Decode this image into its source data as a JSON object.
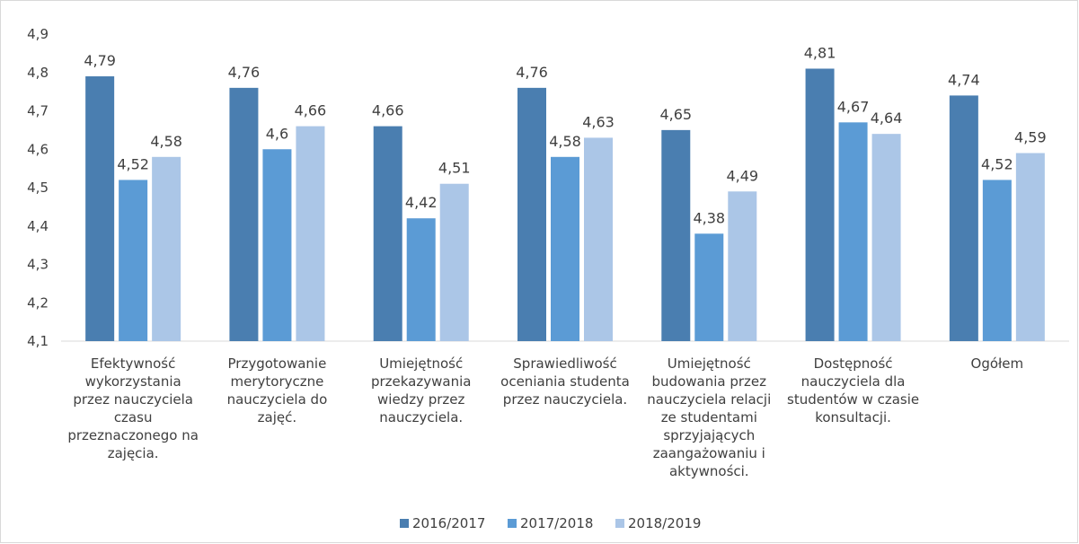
{
  "chart_data": {
    "type": "bar",
    "categories": [
      "Efektywność wykorzystania przez nauczyciela czasu przeznaczonego na zajęcia.",
      "Przygotowanie merytoryczne nauczyciela do zajęć.",
      "Umiejętność przekazywania wiedzy przez nauczyciela.",
      "Sprawiedliwość oceniania studenta przez nauczyciela.",
      "Umiejętność budowania przez nauczyciela relacji ze studentami sprzyjających zaangażowaniu i aktywności.",
      "Dostępność nauczyciela dla studentów w czasie konsultacji.",
      "Ogółem"
    ],
    "series": [
      {
        "name": "2016/2017",
        "color": "#4a7eb0",
        "values": [
          4.79,
          4.76,
          4.66,
          4.76,
          4.65,
          4.81,
          4.74
        ],
        "value_labels": [
          "4,79",
          "4,76",
          "4,66",
          "4,76",
          "4,65",
          "4,81",
          "4,74"
        ]
      },
      {
        "name": "2017/2018",
        "color": "#5b9bd5",
        "values": [
          4.52,
          4.6,
          4.42,
          4.58,
          4.38,
          4.67,
          4.52
        ],
        "value_labels": [
          "4,52",
          "4,6",
          "4,42",
          "4,58",
          "4,38",
          "4,67",
          "4,52"
        ]
      },
      {
        "name": "2018/2019",
        "color": "#abc6e7",
        "values": [
          4.58,
          4.66,
          4.51,
          4.63,
          4.49,
          4.64,
          4.59
        ],
        "value_labels": [
          "4,58",
          "4,66",
          "4,51",
          "4,63",
          "4,49",
          "4,64",
          "4,59"
        ]
      }
    ],
    "ylim": [
      4.1,
      4.9
    ],
    "yticks": [
      {
        "value": 4.1,
        "label": "4,1"
      },
      {
        "value": 4.2,
        "label": "4,2"
      },
      {
        "value": 4.3,
        "label": "4,3"
      },
      {
        "value": 4.4,
        "label": "4,4"
      },
      {
        "value": 4.5,
        "label": "4,5"
      },
      {
        "value": 4.6,
        "label": "4,6"
      },
      {
        "value": 4.7,
        "label": "4,7"
      },
      {
        "value": 4.8,
        "label": "4,8"
      },
      {
        "value": 4.9,
        "label": "4,9"
      }
    ],
    "grid": false,
    "legend": "bottom"
  }
}
